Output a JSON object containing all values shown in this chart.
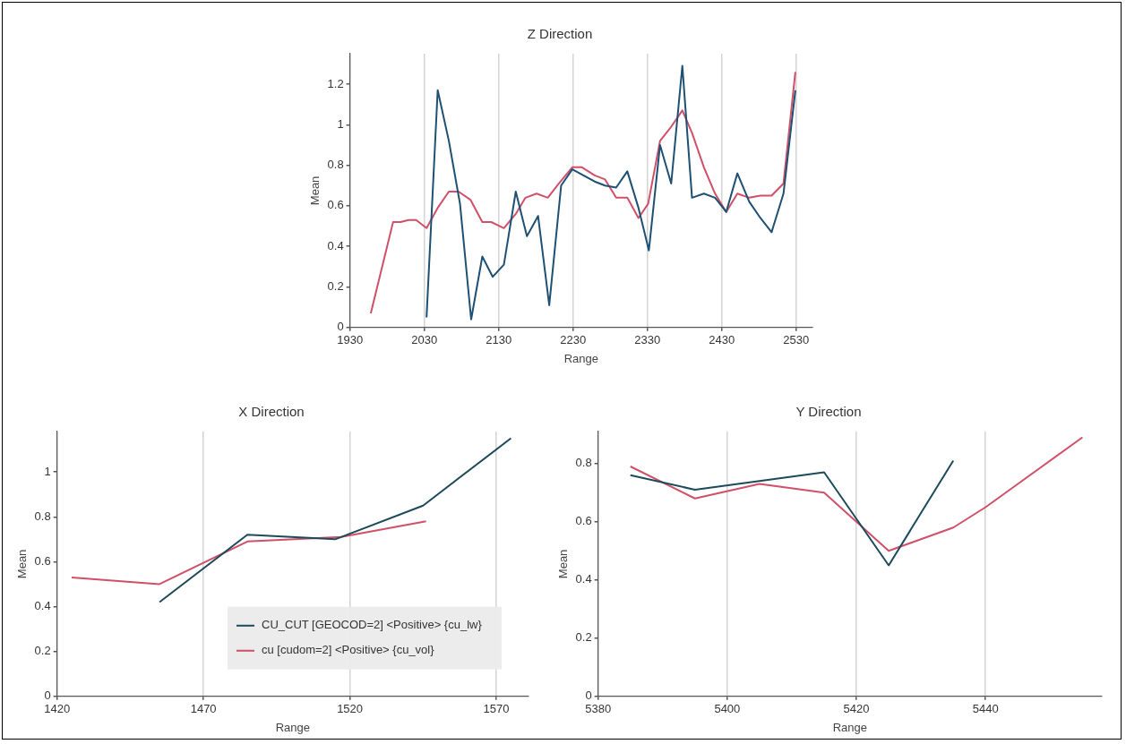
{
  "chart_data": [
    {
      "type": "line",
      "title": "Z Direction",
      "xlabel": "Range",
      "ylabel": "Mean",
      "xlim": [
        1930,
        2552
      ],
      "xticks": [
        1930,
        2030,
        2130,
        2230,
        2330,
        2430,
        2530
      ],
      "ylim": [
        0,
        1.35
      ],
      "yticks": [
        0,
        0.2,
        0.4,
        0.6,
        0.8,
        1,
        1.2
      ],
      "grid": "x",
      "marker": "none",
      "series": [
        {
          "color": "#1d5073",
          "x": [
            2033,
            2048,
            2063,
            2078,
            2093,
            2108,
            2122,
            2137,
            2153,
            2168,
            2183,
            2198,
            2214,
            2229,
            2244,
            2259,
            2273,
            2288,
            2303,
            2318,
            2332,
            2347,
            2362,
            2377,
            2390,
            2406,
            2421,
            2436,
            2451,
            2467,
            2482,
            2497,
            2513,
            2529
          ],
          "values": [
            0.05,
            1.17,
            0.92,
            0.61,
            0.04,
            0.35,
            0.25,
            0.31,
            0.67,
            0.45,
            0.55,
            0.11,
            0.7,
            0.78,
            0.75,
            0.72,
            0.7,
            0.69,
            0.77,
            0.59,
            0.38,
            0.9,
            0.71,
            1.29,
            0.64,
            0.66,
            0.64,
            0.57,
            0.76,
            0.62,
            0.54,
            0.47,
            0.66,
            1.17
          ]
        },
        {
          "color": "#cf5068",
          "x": [
            1958,
            1988,
            1998,
            2009,
            2019,
            2033,
            2048,
            2063,
            2076,
            2092,
            2108,
            2120,
            2137,
            2153,
            2166,
            2181,
            2196,
            2211,
            2229,
            2242,
            2259,
            2273,
            2288,
            2303,
            2318,
            2331,
            2347,
            2362,
            2377,
            2390,
            2406,
            2421,
            2436,
            2451,
            2467,
            2482,
            2497,
            2513,
            2529
          ],
          "values": [
            0.07,
            0.52,
            0.52,
            0.53,
            0.53,
            0.49,
            0.59,
            0.67,
            0.67,
            0.63,
            0.52,
            0.52,
            0.49,
            0.56,
            0.64,
            0.66,
            0.64,
            0.71,
            0.79,
            0.79,
            0.75,
            0.73,
            0.64,
            0.64,
            0.54,
            0.61,
            0.92,
            0.99,
            1.07,
            0.96,
            0.79,
            0.66,
            0.57,
            0.66,
            0.64,
            0.65,
            0.65,
            0.71,
            1.26
          ]
        }
      ]
    },
    {
      "type": "line",
      "title": "X Direction",
      "xlabel": "Range",
      "ylabel": "Mean",
      "xlim": [
        1420,
        1581
      ],
      "xticks": [
        1420,
        1470,
        1520,
        1570
      ],
      "ylim": [
        0,
        1.18
      ],
      "yticks": [
        0,
        0.2,
        0.4,
        0.6,
        0.8,
        1
      ],
      "grid": "x",
      "marker": "none",
      "legend": "bottom right",
      "series": [
        {
          "name": "CU_CUT [GEOCOD=2] <Positive> {cu_lw}",
          "color": "#1d4a5a",
          "x": [
            1455,
            1485,
            1515,
            1545,
            1575
          ],
          "values": [
            0.42,
            0.72,
            0.7,
            0.85,
            1.15
          ]
        },
        {
          "name": "cu [cudom=2] <Positive> {cu_vol}",
          "color": "#cf5068",
          "x": [
            1425,
            1455,
            1485,
            1517,
            1546
          ],
          "values": [
            0.53,
            0.5,
            0.69,
            0.71,
            0.78
          ]
        }
      ]
    },
    {
      "type": "line",
      "title": "Y Direction",
      "xlabel": "Range",
      "ylabel": "Mean",
      "xlim": [
        5380,
        5458
      ],
      "xticks": [
        5380,
        5400,
        5420,
        5440
      ],
      "ylim": [
        0,
        0.91
      ],
      "yticks": [
        0,
        0.2,
        0.4,
        0.6,
        0.8
      ],
      "grid": "x",
      "marker": "none",
      "series": [
        {
          "color": "#1d4a5a",
          "x": [
            5385,
            5395,
            5415,
            5425,
            5435
          ],
          "values": [
            0.76,
            0.71,
            0.77,
            0.45,
            0.81
          ]
        },
        {
          "color": "#cf5068",
          "x": [
            5385,
            5395,
            5405,
            5415,
            5425,
            5435,
            5440,
            5445,
            5455
          ],
          "values": [
            0.79,
            0.68,
            0.73,
            0.7,
            0.5,
            0.58,
            0.65,
            0.73,
            0.89
          ]
        }
      ]
    }
  ]
}
